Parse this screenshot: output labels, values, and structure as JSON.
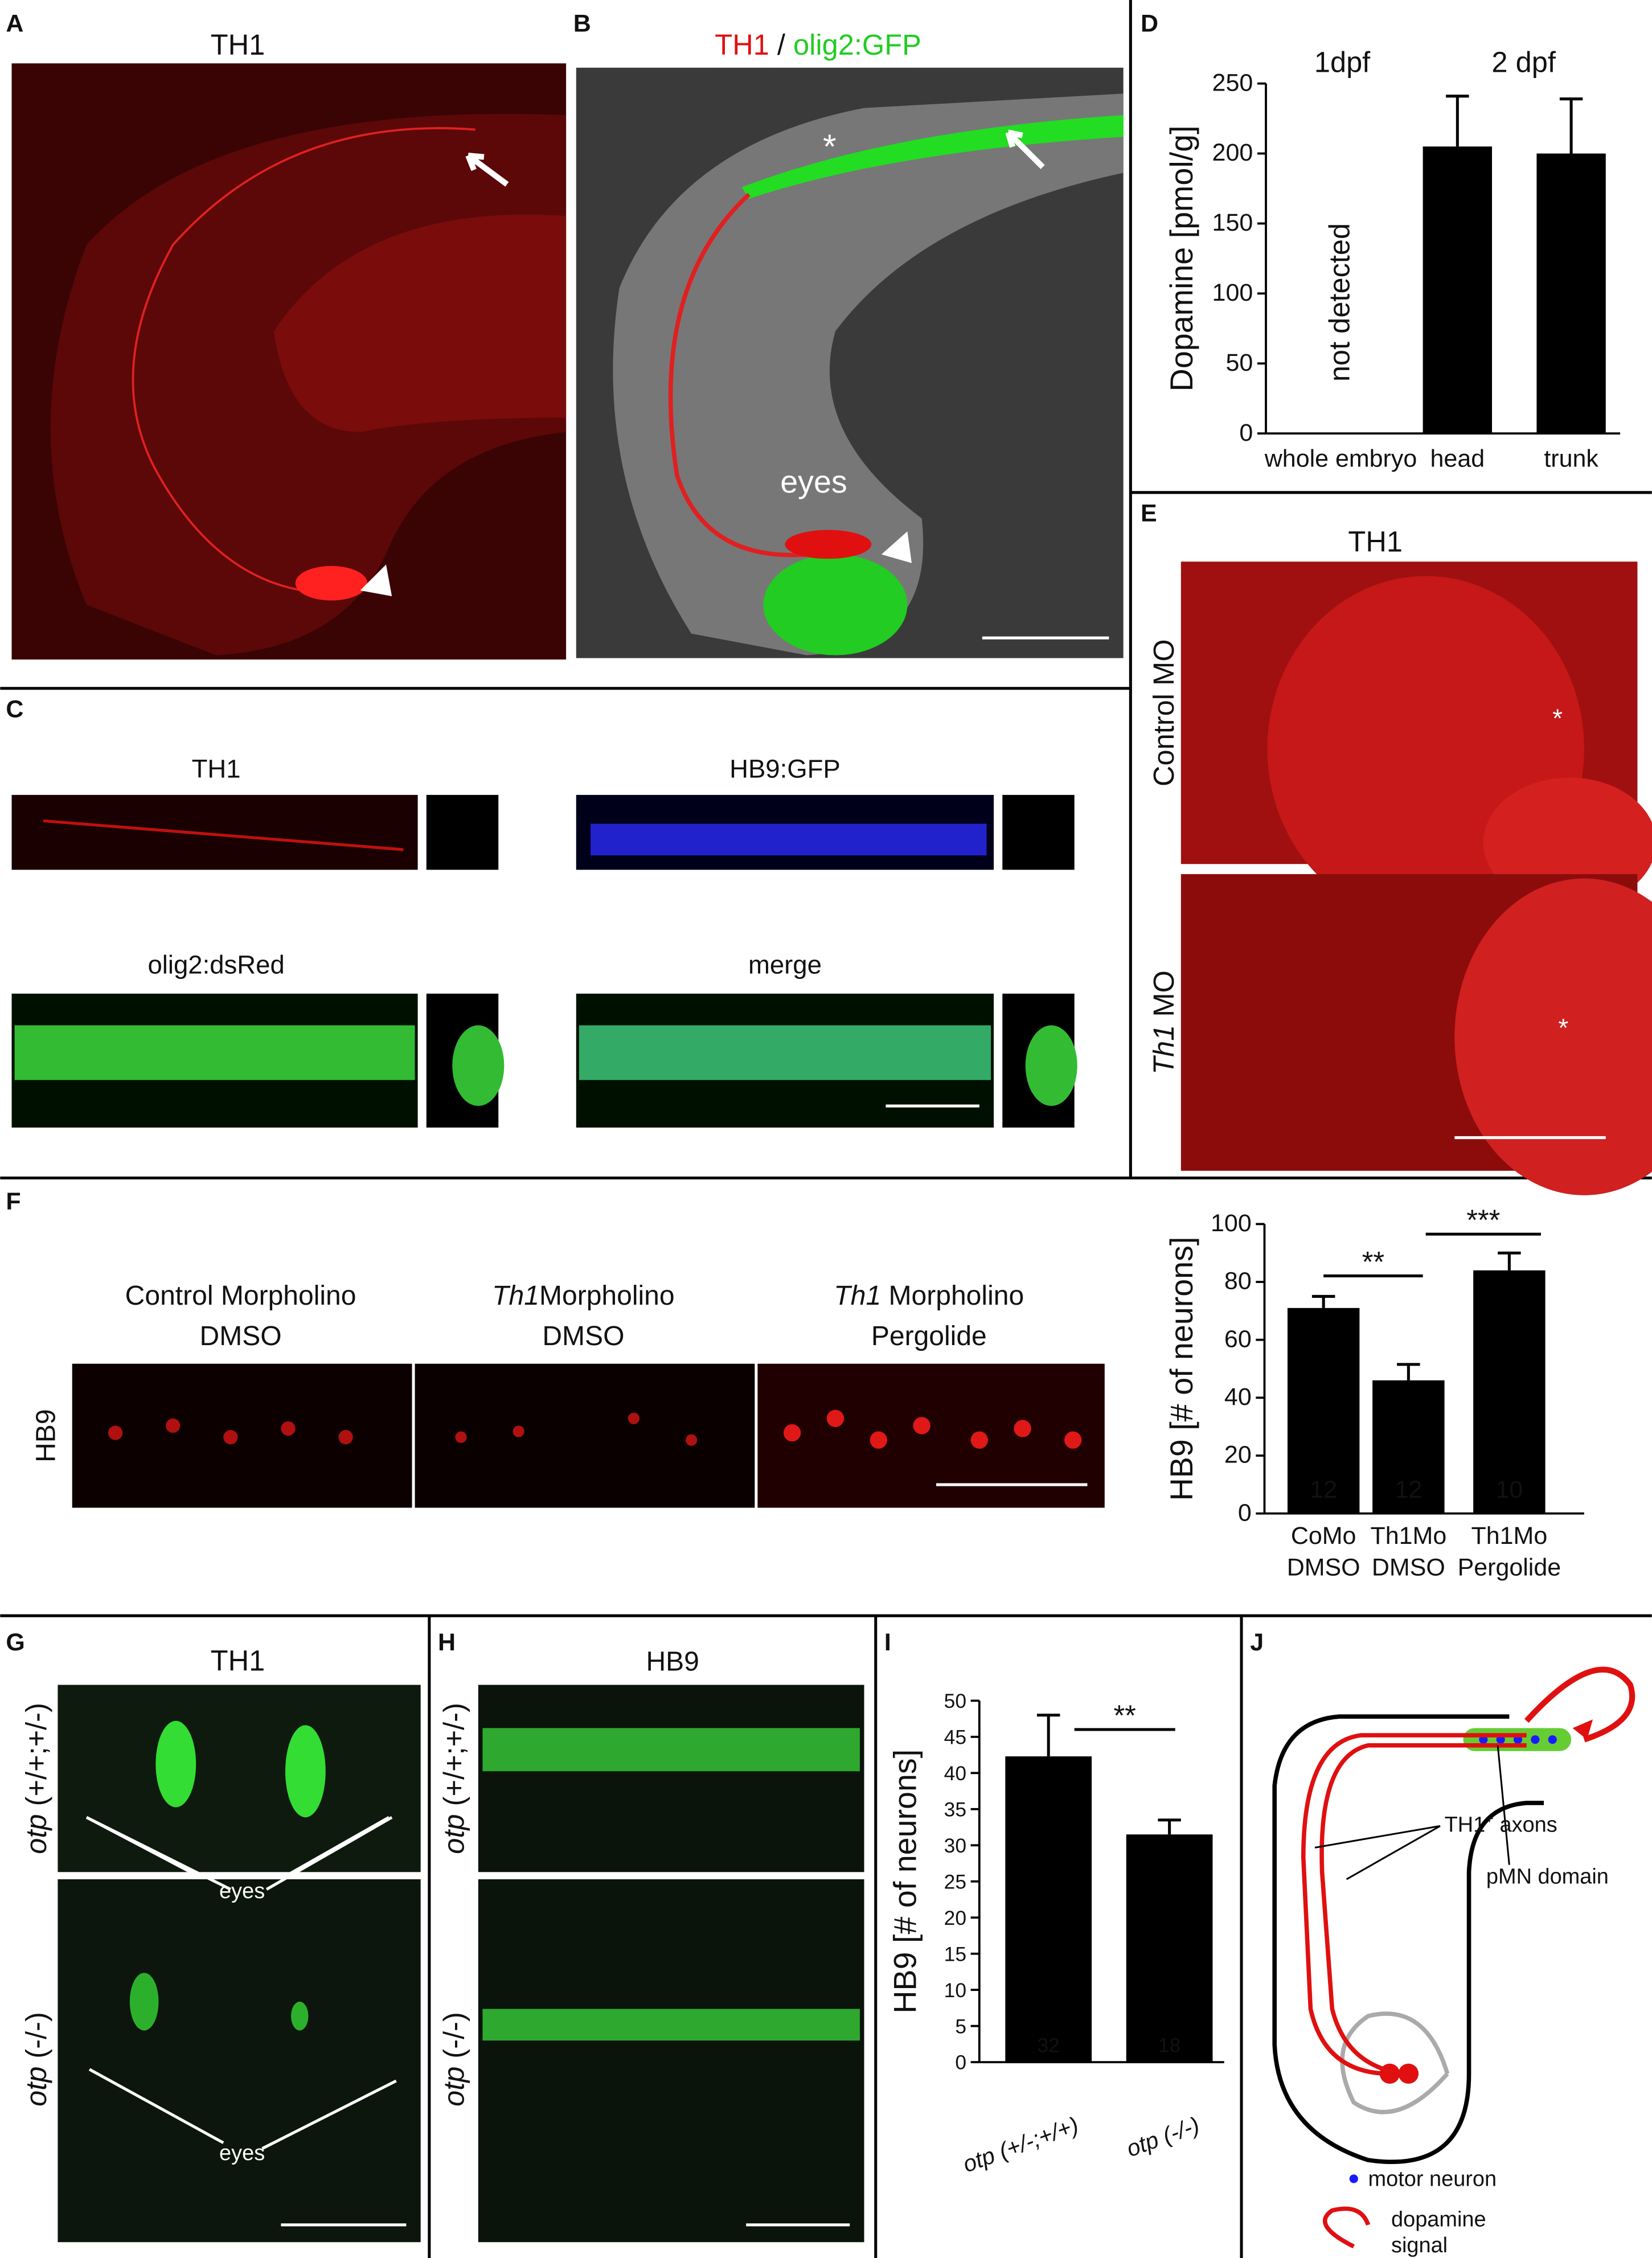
{
  "panels": {
    "A": {
      "label": "A",
      "title": "TH1"
    },
    "B": {
      "label": "B",
      "title_red": "TH1",
      "title_sep": "/",
      "title_green": "olig2:GFP",
      "star": "*",
      "eyes": "eyes"
    },
    "C": {
      "label": "C",
      "titles": [
        "TH1",
        "HB9:GFP",
        "olig2:dsRed",
        "merge"
      ]
    },
    "D": {
      "label": "D"
    },
    "E": {
      "label": "E",
      "title": "TH1",
      "control": "Control MO",
      "th1_italic": "Th1",
      "th1_rest": "MO",
      "star": "*"
    },
    "F": {
      "label": "F",
      "col1": [
        "Control Morpholino",
        "DMSO"
      ],
      "col2_italic": "Th1",
      "col2": [
        "Morpholino",
        "DMSO"
      ],
      "col3_italic": "Th1",
      "col3": [
        "Morpholino",
        "Pergolide"
      ],
      "row": "HB9"
    },
    "G": {
      "label": "G",
      "title": "TH1",
      "gene": "otp",
      "geno1": "(+/+;+/-)",
      "geno2": "(-/-)",
      "eyes": "eyes"
    },
    "H": {
      "label": "H",
      "title": "HB9",
      "gene": "otp",
      "geno1": "(+/+;+/-)",
      "geno2": "(-/-)"
    },
    "I": {
      "label": "I"
    },
    "J": {
      "label": "J",
      "pmn": "pMN domain",
      "axons": "TH1",
      "axons_sup": "+",
      "axons_rest": "axons",
      "motor": "motor neuron",
      "signal": [
        "dopamine",
        "signal"
      ]
    }
  },
  "chart_data": [
    {
      "type": "bar",
      "y_label": "Dopamine [pmol/g]",
      "groups": [
        "1dpf",
        "2 dpf"
      ],
      "categories": [
        "whole embryo",
        "head",
        "trunk"
      ],
      "values": [
        null,
        205,
        200
      ],
      "errors": [
        null,
        36,
        39
      ],
      "annotation": "not detected",
      "ylim": [
        0,
        250
      ],
      "yticks": [
        0,
        50,
        100,
        150,
        200,
        250
      ],
      "color": "#000000"
    },
    {
      "type": "bar",
      "y_label": "HB9 [# of neurons]",
      "categories": [
        [
          "CoMo",
          "DMSO"
        ],
        [
          "Th1Mo",
          "DMSO"
        ],
        [
          "Th1Mo",
          "Pergolide"
        ]
      ],
      "values": [
        71,
        46,
        84
      ],
      "errors": [
        4,
        5.5,
        6
      ],
      "n": [
        12,
        12,
        10
      ],
      "significance": [
        "**",
        "***"
      ],
      "ylim": [
        0,
        100
      ],
      "yticks": [
        0,
        20,
        40,
        60,
        80,
        100
      ],
      "color": "#000000"
    },
    {
      "type": "bar",
      "y_label": "HB9 [# of neurons]",
      "categories": [
        "otp (+/-;+/+)",
        "otp (-/-)"
      ],
      "values": [
        42.3,
        31.5
      ],
      "errors": [
        5.7,
        2
      ],
      "n": [
        32,
        18
      ],
      "significance": [
        "**"
      ],
      "ylim": [
        0,
        50
      ],
      "yticks": [
        0,
        5,
        10,
        15,
        20,
        25,
        30,
        35,
        40,
        45,
        50
      ],
      "color": "#000000"
    }
  ]
}
